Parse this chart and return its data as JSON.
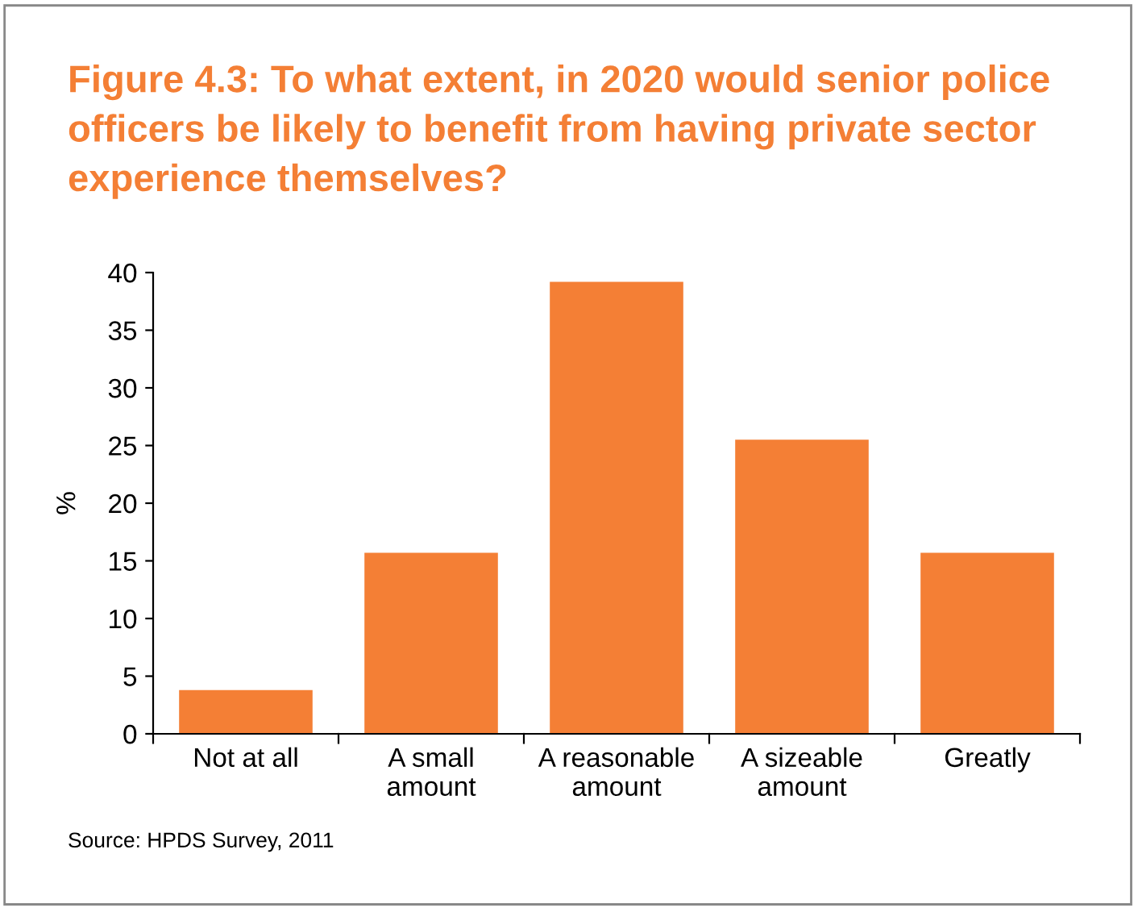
{
  "chart_data": {
    "type": "bar",
    "title": "Figure 4.3: To what extent, in 2020 would senior police officers be likely to benefit from having private sector experience themselves?",
    "categories": [
      "Not at all",
      "A small\namount",
      "A reasonable\namount",
      "A sizeable\namount",
      "Greatly"
    ],
    "values": [
      3.8,
      15.7,
      39.2,
      25.5,
      15.7
    ],
    "color": "#f47f35",
    "ylabel": "%",
    "ylim": [
      0,
      40
    ],
    "yticks": [
      0,
      5,
      10,
      15,
      20,
      25,
      30,
      35,
      40
    ],
    "grid": false,
    "legend": false,
    "annotations": [
      "Source: HPDS Survey, 2011"
    ]
  }
}
